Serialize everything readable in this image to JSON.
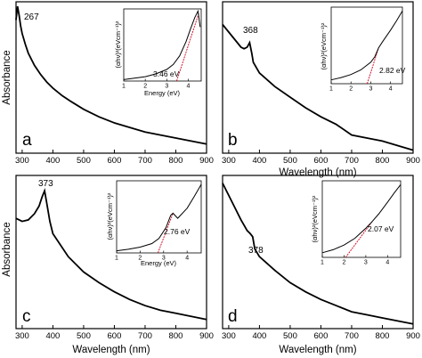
{
  "chart_data": [
    {
      "panel": "a",
      "type": "line",
      "xlabel": "",
      "ylabel": "Absorbance",
      "xlim": [
        280,
        900
      ],
      "xticks": [
        300,
        400,
        500,
        600,
        700,
        800,
        900
      ],
      "peak_label": "267",
      "peak_x": 267,
      "x": [
        280,
        285,
        290,
        295,
        300,
        310,
        320,
        340,
        360,
        380,
        400,
        430,
        460,
        500,
        550,
        600,
        650,
        700,
        750,
        800,
        850,
        900
      ],
      "y": [
        0.88,
        0.97,
        0.91,
        0.84,
        0.79,
        0.72,
        0.66,
        0.58,
        0.52,
        0.47,
        0.43,
        0.38,
        0.34,
        0.29,
        0.24,
        0.2,
        0.17,
        0.14,
        0.12,
        0.1,
        0.08,
        0.06
      ],
      "inset": {
        "xlabel": "Energy (eV)",
        "ylabel": "(αhν)²(eVcm⁻¹)²",
        "xlim": [
          1,
          4.6
        ],
        "xticks": [
          1,
          2,
          3,
          4
        ],
        "bandgap_label": "3.46 eV",
        "bandgap": 3.46,
        "x": [
          1,
          1.5,
          2,
          2.5,
          3,
          3.3,
          3.6,
          3.9,
          4.1,
          4.3,
          4.45,
          4.55
        ],
        "y": [
          0.02,
          0.04,
          0.06,
          0.1,
          0.16,
          0.23,
          0.35,
          0.55,
          0.72,
          0.88,
          0.97,
          0.75
        ],
        "fit": {
          "x": [
            3.46,
            4.5
          ],
          "y": [
            0.0,
            0.95
          ]
        }
      }
    },
    {
      "panel": "b",
      "type": "line",
      "xlabel": "Wavelength (nm)",
      "ylabel": "",
      "xlim": [
        280,
        900
      ],
      "xticks": [
        300,
        400,
        500,
        600,
        700,
        800,
        900
      ],
      "peak_label": "368",
      "peak_x": 368,
      "x": [
        280,
        300,
        320,
        340,
        350,
        360,
        368,
        375,
        380,
        400,
        450,
        500,
        550,
        600,
        650,
        700,
        750,
        800,
        850,
        900
      ],
      "y": [
        0.85,
        0.8,
        0.75,
        0.7,
        0.69,
        0.7,
        0.73,
        0.66,
        0.6,
        0.53,
        0.44,
        0.37,
        0.3,
        0.24,
        0.19,
        0.12,
        0.1,
        0.08,
        0.05,
        0.02
      ],
      "inset": {
        "xlabel": "",
        "ylabel": "(αhν)²(eVcm⁻¹)²",
        "xlim": [
          1,
          4.6
        ],
        "xticks": [
          1,
          2,
          3,
          4
        ],
        "bandgap_label": "2.82 eV",
        "bandgap": 2.82,
        "x": [
          1,
          1.5,
          2,
          2.5,
          3,
          3.2,
          3.35,
          3.4,
          3.6,
          4,
          4.3,
          4.6
        ],
        "y": [
          0.05,
          0.08,
          0.12,
          0.18,
          0.28,
          0.35,
          0.44,
          0.47,
          0.55,
          0.7,
          0.82,
          0.95
        ],
        "fit": {
          "x": [
            2.82,
            3.4
          ],
          "y": [
            0.0,
            0.47
          ]
        }
      }
    },
    {
      "panel": "c",
      "type": "line",
      "xlabel": "Wavelength (nm)",
      "ylabel": "Absorbance",
      "xlim": [
        280,
        900
      ],
      "xticks": [
        300,
        400,
        500,
        600,
        700,
        800,
        900
      ],
      "peak_label": "373",
      "peak_x": 373,
      "x": [
        280,
        300,
        320,
        340,
        355,
        365,
        373,
        380,
        390,
        400,
        450,
        500,
        550,
        600,
        650,
        700,
        750,
        800,
        850,
        900
      ],
      "y": [
        0.72,
        0.7,
        0.71,
        0.75,
        0.8,
        0.86,
        0.9,
        0.82,
        0.7,
        0.62,
        0.47,
        0.37,
        0.3,
        0.24,
        0.19,
        0.15,
        0.12,
        0.1,
        0.08,
        0.06
      ],
      "inset": {
        "xlabel": "Energy (eV)",
        "ylabel": "(αhν)²(eVcm⁻¹)²",
        "xlim": [
          1,
          4.6
        ],
        "xticks": [
          1,
          2,
          3,
          4
        ],
        "bandgap_label": "2.76 eV",
        "bandgap": 2.76,
        "x": [
          1,
          1.5,
          2,
          2.5,
          2.8,
          3.1,
          3.3,
          3.4,
          3.6,
          4,
          4.3,
          4.6
        ],
        "y": [
          0.03,
          0.05,
          0.08,
          0.13,
          0.2,
          0.35,
          0.52,
          0.55,
          0.48,
          0.62,
          0.78,
          0.95
        ],
        "fit": {
          "x": [
            2.76,
            3.4
          ],
          "y": [
            0.0,
            0.55
          ]
        }
      }
    },
    {
      "panel": "d",
      "type": "line",
      "xlabel": "Wavelength (nm)",
      "ylabel": "",
      "xlim": [
        280,
        900
      ],
      "xticks": [
        300,
        400,
        500,
        600,
        700,
        800,
        900
      ],
      "peak_label": "378",
      "peak_x": 378,
      "x": [
        280,
        300,
        320,
        340,
        360,
        370,
        378,
        385,
        400,
        450,
        500,
        550,
        600,
        650,
        700,
        750,
        800,
        850,
        900
      ],
      "y": [
        0.95,
        0.87,
        0.79,
        0.71,
        0.64,
        0.62,
        0.6,
        0.52,
        0.47,
        0.38,
        0.3,
        0.24,
        0.19,
        0.15,
        0.11,
        0.09,
        0.07,
        0.05,
        0.03
      ],
      "inset": {
        "xlabel": "",
        "ylabel": "(αhν)²(eVcm⁻¹)²",
        "xlim": [
          1,
          4.6
        ],
        "xticks": [
          1,
          2,
          3,
          4
        ],
        "bandgap_label": "2.07 eV",
        "bandgap": 2.07,
        "x": [
          1,
          1.5,
          2,
          2.5,
          3,
          3.3,
          3.6,
          4,
          4.3,
          4.6
        ],
        "y": [
          0.06,
          0.1,
          0.16,
          0.25,
          0.38,
          0.47,
          0.57,
          0.72,
          0.84,
          0.95
        ],
        "fit": {
          "x": [
            2.07,
            3.3
          ],
          "y": [
            0.0,
            0.47
          ]
        }
      }
    }
  ]
}
